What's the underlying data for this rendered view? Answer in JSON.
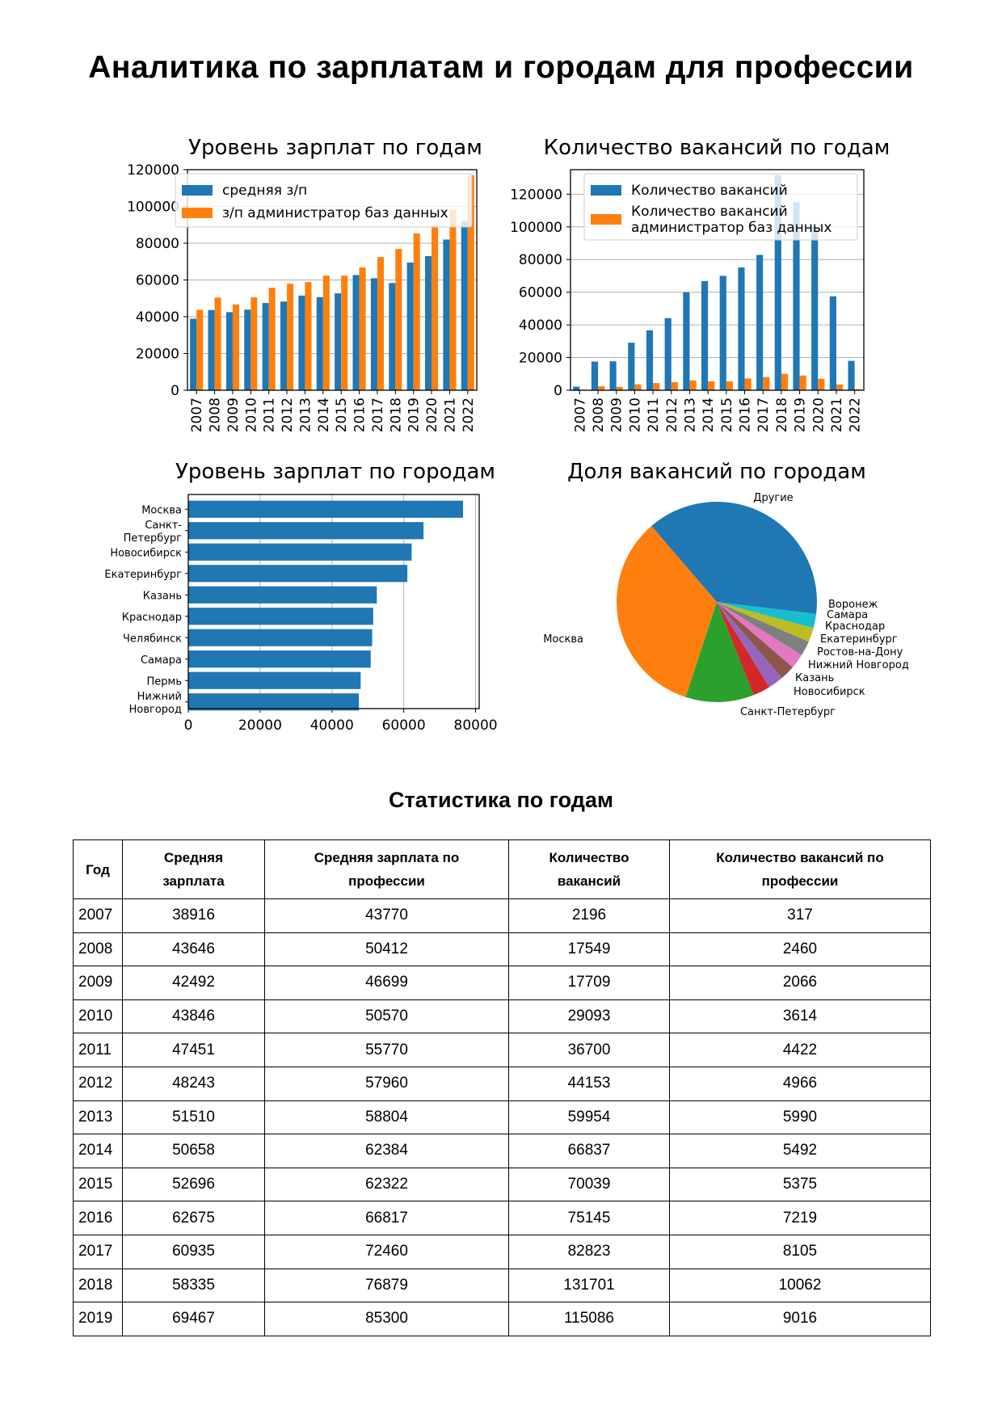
{
  "page": {
    "title": "Аналитика по зарплатам и городам для профессии"
  },
  "charts": {
    "salary_by_year_title": "Уровень зарплат по годам",
    "vacancies_by_year_title": "Количество вакансий по годам",
    "salary_by_city_title": "Уровень зарплат по городам",
    "share_by_city_title": "Доля вакансий по городам"
  },
  "colors": {
    "blue": "#1f77b4",
    "orange": "#ff7f0e"
  },
  "chart_data": [
    {
      "type": "bar",
      "title": "Уровень зарплат по годам",
      "categories": [
        "2007",
        "2008",
        "2009",
        "2010",
        "2011",
        "2012",
        "2013",
        "2014",
        "2015",
        "2016",
        "2017",
        "2018",
        "2019",
        "2020",
        "2021",
        "2022"
      ],
      "series": [
        {
          "name": "средняя з/п",
          "values": [
            38916,
            43646,
            42492,
            43846,
            47451,
            48243,
            51510,
            50658,
            52696,
            62675,
            60935,
            58335,
            69467,
            73000,
            82000,
            92000
          ]
        },
        {
          "name": "з/п администратор баз данных",
          "values": [
            43770,
            50412,
            46699,
            50570,
            55770,
            57960,
            58804,
            62384,
            62322,
            66817,
            72460,
            76879,
            85300,
            89500,
            98000,
            117000
          ]
        }
      ],
      "yticks": [
        0,
        20000,
        40000,
        60000,
        80000,
        100000,
        120000
      ],
      "ylim": [
        0,
        120000
      ],
      "grid": "y",
      "legend": "top-left"
    },
    {
      "type": "bar",
      "title": "Количество вакансий по годам",
      "categories": [
        "2007",
        "2008",
        "2009",
        "2010",
        "2011",
        "2012",
        "2013",
        "2014",
        "2015",
        "2016",
        "2017",
        "2018",
        "2019",
        "2020",
        "2021",
        "2022"
      ],
      "series": [
        {
          "name": "Количество вакансий",
          "values": [
            2196,
            17549,
            17709,
            29093,
            36700,
            44153,
            59954,
            66837,
            70039,
            75145,
            82823,
            131701,
            115086,
            100000,
            57500,
            18000
          ]
        },
        {
          "name": "Количество вакансий\nадминистратор баз данных",
          "values": [
            317,
            2460,
            2066,
            3614,
            4422,
            4966,
            5990,
            5492,
            5375,
            7219,
            8105,
            10062,
            9016,
            7000,
            3500,
            700
          ]
        }
      ],
      "yticks": [
        0,
        20000,
        40000,
        60000,
        80000,
        100000,
        120000
      ],
      "ylim": [
        0,
        135000
      ],
      "grid": "y",
      "legend": "top-left"
    },
    {
      "type": "bar",
      "orientation": "horizontal",
      "title": "Уровень зарплат по городам",
      "categories": [
        "Москва",
        "Санкт-\nПетербург",
        "Новосибирск",
        "Екатеринбург",
        "Казань",
        "Краснодар",
        "Челябинск",
        "Самара",
        "Пермь",
        "Нижний\nНовгород"
      ],
      "values": [
        76500,
        65500,
        62200,
        61000,
        52500,
        51500,
        51200,
        50800,
        48000,
        47500
      ],
      "xticks": [
        0,
        20000,
        40000,
        60000,
        80000
      ],
      "xlim": [
        0,
        81000
      ],
      "grid": "x"
    },
    {
      "type": "pie",
      "title": "Доля вакансий по городам",
      "slices": [
        {
          "label": "Другие",
          "value": 36.3,
          "color": "#1f77b4"
        },
        {
          "label": "Москва",
          "value": 33.7,
          "color": "#ff7f0e"
        },
        {
          "label": "Санкт-Петербург",
          "value": 11.0,
          "color": "#2ca02c"
        },
        {
          "label": "Новосибирск",
          "value": 2.8,
          "color": "#d62728"
        },
        {
          "label": "Казань",
          "value": 2.5,
          "color": "#9467bd"
        },
        {
          "label": "Нижний Новгород",
          "value": 2.4,
          "color": "#8c564b"
        },
        {
          "label": "Ростов-на-Дону",
          "value": 2.4,
          "color": "#e377c2"
        },
        {
          "label": "Екатеринбург",
          "value": 2.4,
          "color": "#7f7f7f"
        },
        {
          "label": "Краснодар",
          "value": 2.3,
          "color": "#bcbd22"
        },
        {
          "label": "Самара",
          "value": 2.3,
          "color": "#17becf"
        },
        {
          "label": "Воронеж",
          "value": 1.9,
          "color": "#1f77b4"
        }
      ]
    }
  ],
  "table": {
    "title": "Статистика по годам",
    "headers": [
      "Год",
      "Средняя\nзарплата",
      "Средняя зарплата по\nпрофессии",
      "Количество\nвакансий",
      "Количество вакансий по\nпрофессии"
    ],
    "rows": [
      [
        "2007",
        "38916",
        "43770",
        "2196",
        "317"
      ],
      [
        "2008",
        "43646",
        "50412",
        "17549",
        "2460"
      ],
      [
        "2009",
        "42492",
        "46699",
        "17709",
        "2066"
      ],
      [
        "2010",
        "43846",
        "50570",
        "29093",
        "3614"
      ],
      [
        "2011",
        "47451",
        "55770",
        "36700",
        "4422"
      ],
      [
        "2012",
        "48243",
        "57960",
        "44153",
        "4966"
      ],
      [
        "2013",
        "51510",
        "58804",
        "59954",
        "5990"
      ],
      [
        "2014",
        "50658",
        "62384",
        "66837",
        "5492"
      ],
      [
        "2015",
        "52696",
        "62322",
        "70039",
        "5375"
      ],
      [
        "2016",
        "62675",
        "66817",
        "75145",
        "7219"
      ],
      [
        "2017",
        "60935",
        "72460",
        "82823",
        "8105"
      ],
      [
        "2018",
        "58335",
        "76879",
        "131701",
        "10062"
      ],
      [
        "2019",
        "69467",
        "85300",
        "115086",
        "9016"
      ]
    ]
  }
}
